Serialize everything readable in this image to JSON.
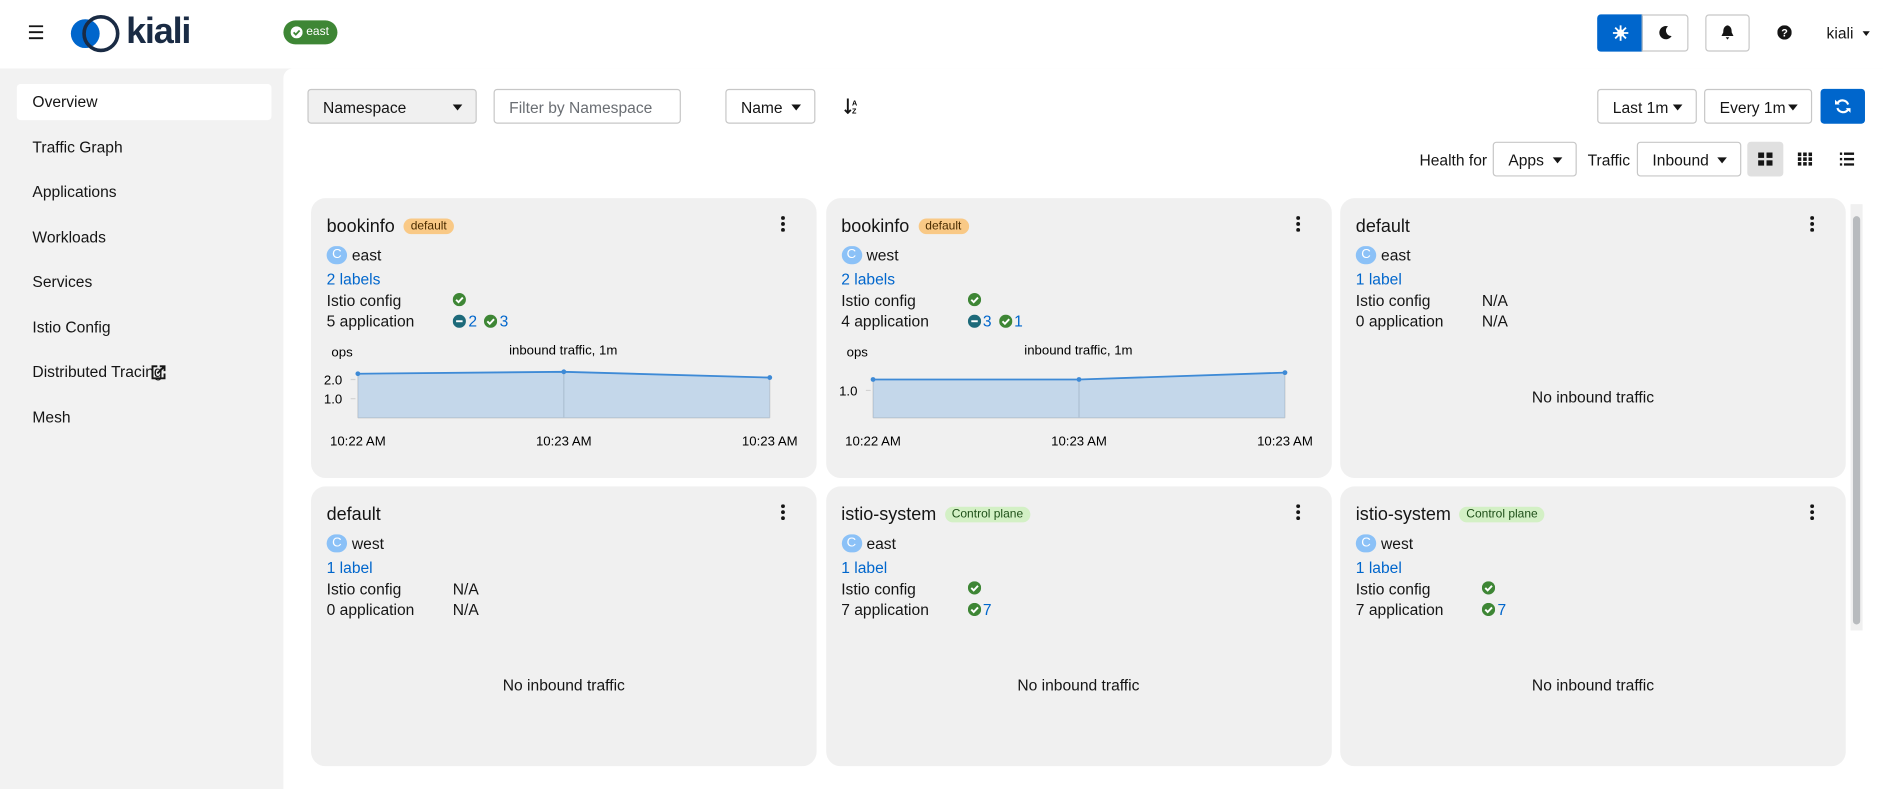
{
  "header": {
    "brand": "kiali",
    "cluster_badge": "east",
    "user": "kiali"
  },
  "nav": {
    "active": 0,
    "items": [
      {
        "label": "Overview"
      },
      {
        "label": "Traffic Graph"
      },
      {
        "label": "Applications"
      },
      {
        "label": "Workloads"
      },
      {
        "label": "Services"
      },
      {
        "label": "Istio Config"
      },
      {
        "label": "Distributed Tracing",
        "external": true
      },
      {
        "label": "Mesh"
      }
    ]
  },
  "toolbar": {
    "filter_type": "Namespace",
    "filter_placeholder": "Filter by Namespace",
    "sort": "Name",
    "time_range": "Last 1m",
    "refresh_interval": "Every 1m",
    "health_label": "Health for",
    "health_value": "Apps",
    "traffic_label": "Traffic",
    "traffic_value": "Inbound"
  },
  "cards": [
    {
      "name": "bookinfo",
      "badge": {
        "text": "default",
        "kind": "default"
      },
      "cluster_badge": "C",
      "cluster": "east",
      "labels": "2 labels",
      "istio_config_label": "Istio config",
      "istio_config": {
        "status": "healthy"
      },
      "applications": {
        "label": "5 application",
        "health": [
          {
            "status": "degraded",
            "count": 2
          },
          {
            "status": "healthy",
            "count": 3
          }
        ]
      },
      "chart": {
        "type": "line",
        "title": "inbound traffic, 1m",
        "y_label": "ops",
        "categories": [
          "10:22 AM",
          "10:23 AM",
          "10:23 AM"
        ],
        "values": [
          2.3,
          2.4,
          2.1
        ],
        "ylim": [
          0,
          2.5
        ],
        "yticks": [
          {
            "value": 2,
            "label": "2.0"
          },
          {
            "value": 1,
            "label": "1.0"
          }
        ],
        "color": "#3e8ad6"
      }
    },
    {
      "name": "bookinfo",
      "badge": {
        "text": "default",
        "kind": "default"
      },
      "cluster_badge": "C",
      "cluster": "west",
      "labels": "2 labels",
      "istio_config_label": "Istio config",
      "istio_config": {
        "status": "healthy"
      },
      "applications": {
        "label": "4 application",
        "health": [
          {
            "status": "degraded",
            "count": 3
          },
          {
            "status": "healthy",
            "count": 1
          }
        ]
      },
      "chart": {
        "type": "line",
        "title": "inbound traffic, 1m",
        "y_label": "ops",
        "categories": [
          "10:22 AM",
          "10:23 AM",
          "10:23 AM"
        ],
        "values": [
          1.4,
          1.4,
          1.65
        ],
        "ylim": [
          0,
          1.75
        ],
        "yticks": [
          {
            "value": 1,
            "label": "1.0"
          }
        ],
        "color": "#3e8ad6"
      }
    },
    {
      "name": "default",
      "cluster_badge": "C",
      "cluster": "east",
      "labels": "1 label",
      "istio_config_label": "Istio config",
      "istio_config": "N/A",
      "applications": {
        "label": "0 application",
        "na": "N/A"
      },
      "no_traffic": "No inbound traffic"
    },
    {
      "name": "default",
      "cluster_badge": "C",
      "cluster": "west",
      "labels": "1 label",
      "istio_config_label": "Istio config",
      "istio_config": "N/A",
      "applications": {
        "label": "0 application",
        "na": "N/A"
      },
      "no_traffic": "No inbound traffic"
    },
    {
      "name": "istio-system",
      "badge": {
        "text": "Control plane",
        "kind": "control"
      },
      "cluster_badge": "C",
      "cluster": "east",
      "labels": "1 label",
      "istio_config_label": "Istio config",
      "istio_config": {
        "status": "healthy"
      },
      "applications": {
        "label": "7 application",
        "health": [
          {
            "status": "healthy",
            "count": 7
          }
        ]
      },
      "no_traffic": "No inbound traffic"
    },
    {
      "name": "istio-system",
      "badge": {
        "text": "Control plane",
        "kind": "control"
      },
      "cluster_badge": "C",
      "cluster": "west",
      "labels": "1 label",
      "istio_config_label": "Istio config",
      "istio_config": {
        "status": "healthy"
      },
      "applications": {
        "label": "7 application",
        "health": [
          {
            "status": "healthy",
            "count": 7
          }
        ]
      },
      "no_traffic": "No inbound traffic"
    }
  ]
}
